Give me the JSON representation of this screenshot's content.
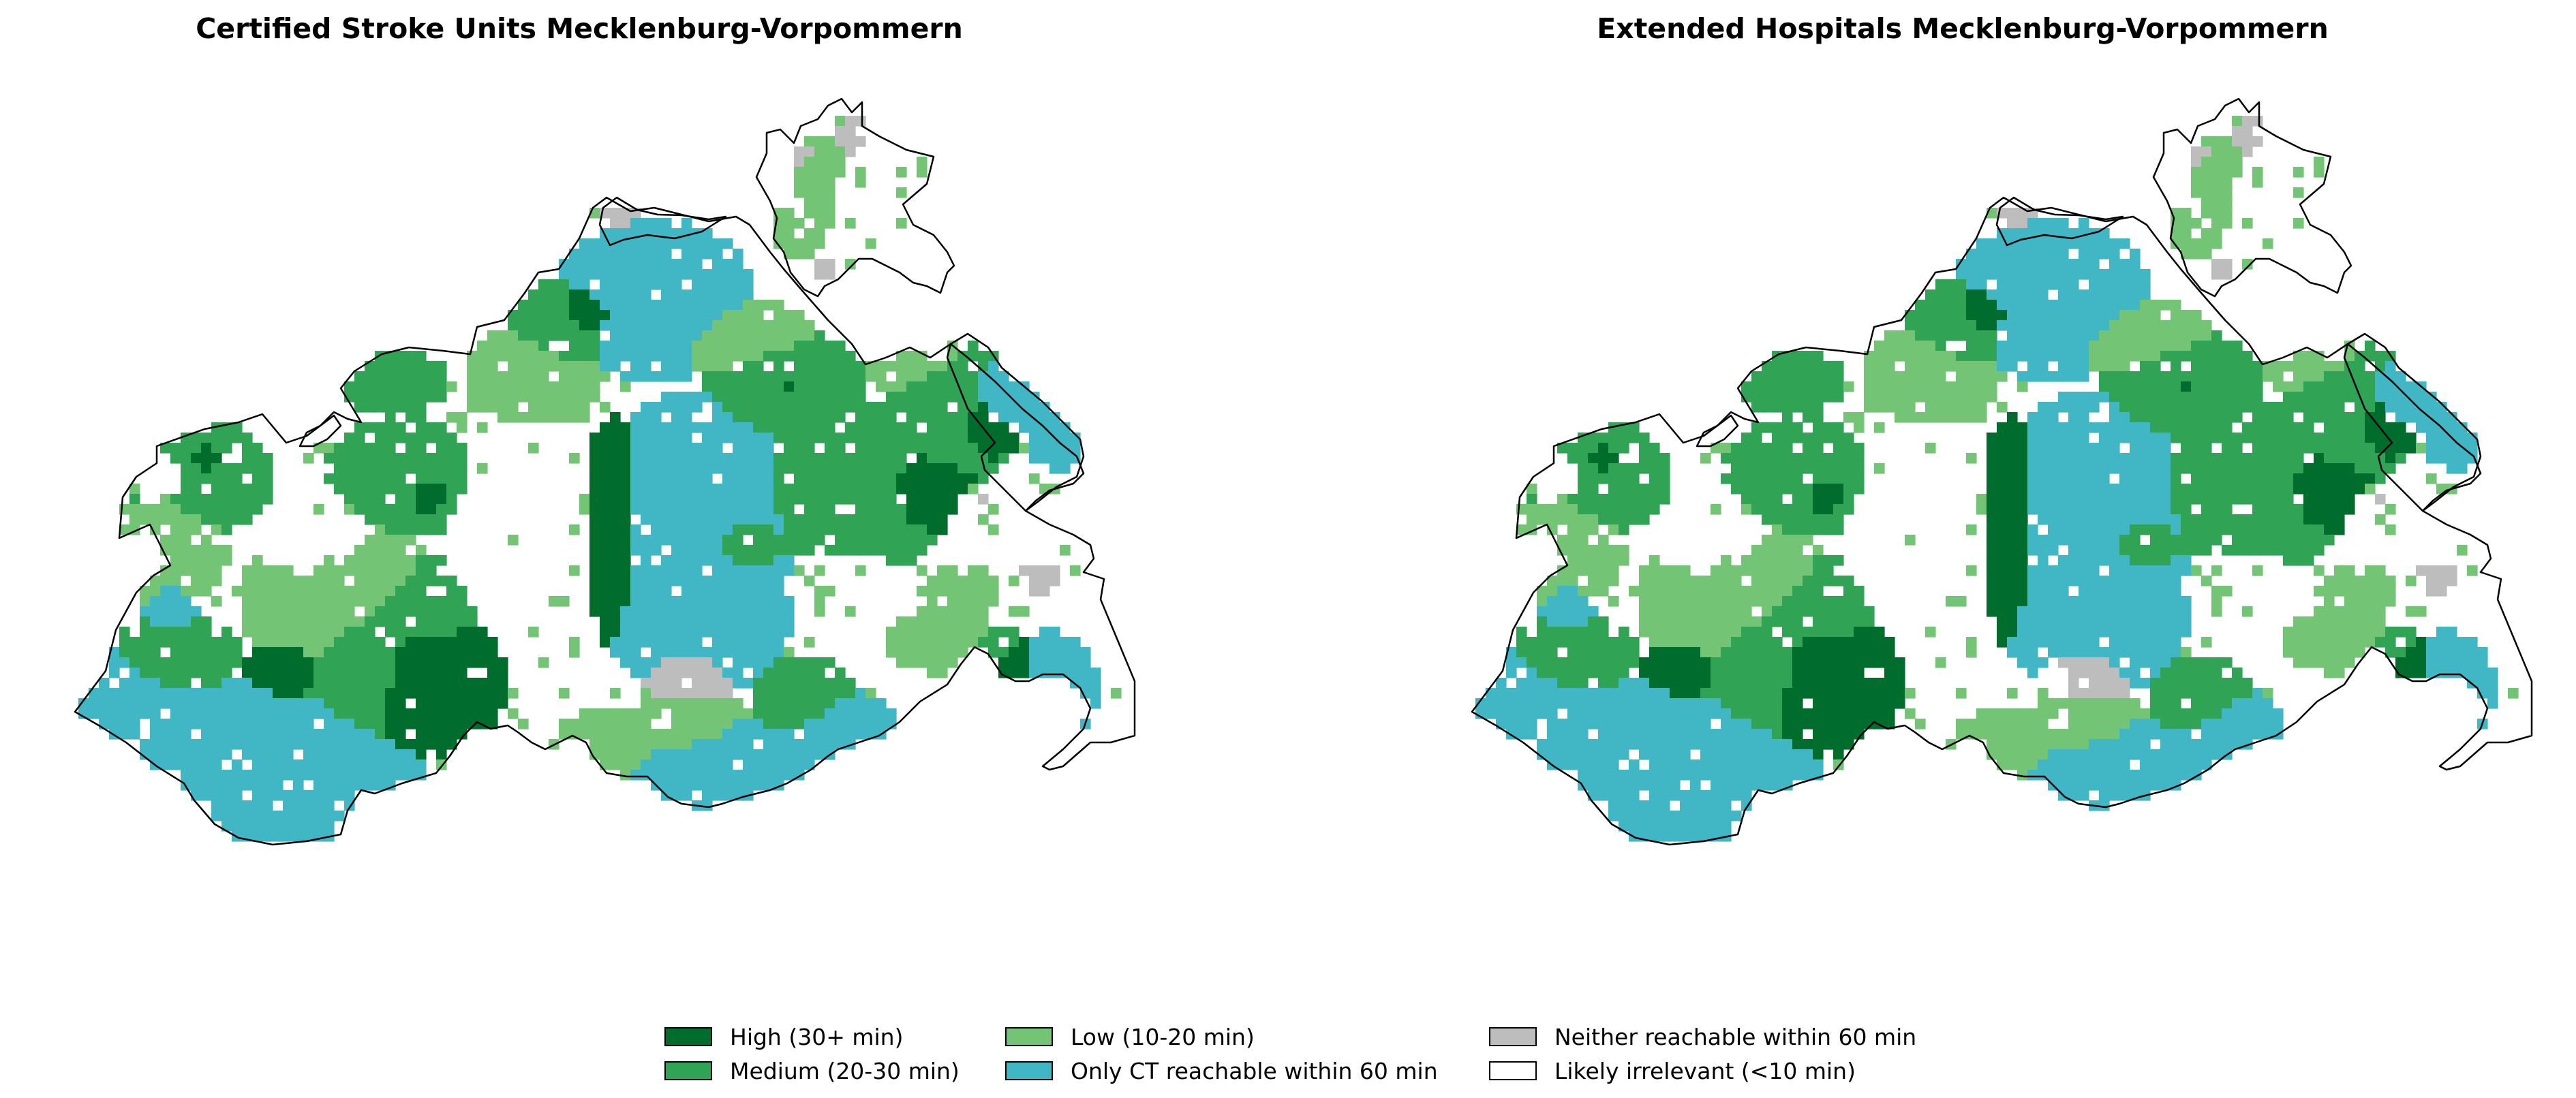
{
  "panels": [
    {
      "title": "Certified Stroke Units Mecklenburg-Vorpommern"
    },
    {
      "title": "Extended Hospitals Mecklenburg-Vorpommern"
    }
  ],
  "legend": {
    "items": [
      {
        "label": "High (30+ min)",
        "color": "#006d2c"
      },
      {
        "label": "Medium (20-30 min)",
        "color": "#31a354"
      },
      {
        "label": "Low (10-20 min)",
        "color": "#74c476"
      },
      {
        "label": "Only CT reachable within 60 min",
        "color": "#41b6c4"
      },
      {
        "label": "Neither reachable within 60 min",
        "color": "#bdbdbd"
      },
      {
        "label": "Likely irrelevant (<10 min)",
        "color": "#ffffff"
      }
    ]
  }
}
